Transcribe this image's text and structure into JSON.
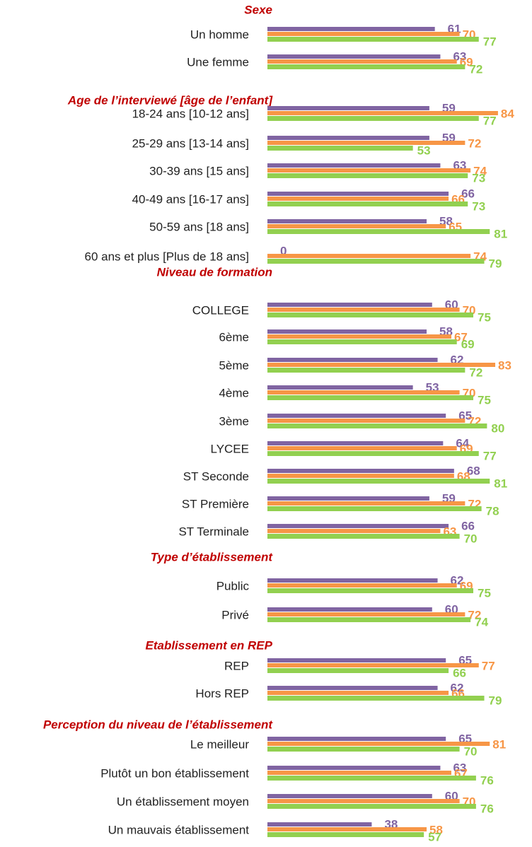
{
  "chart_data": {
    "type": "bar",
    "orientation": "horizontal",
    "colors": [
      "#8064a2",
      "#f79646",
      "#92d050"
    ],
    "xlim": [
      0,
      100
    ],
    "groups": [
      {
        "title": "Sexe",
        "rows": [
          {
            "label": "Un homme",
            "values": [
              61,
              70,
              77
            ]
          },
          {
            "label": "Une femme",
            "values": [
              63,
              69,
              72
            ]
          }
        ]
      },
      {
        "title": "Age de l’interviewé [âge de l’enfant]",
        "rows": [
          {
            "label": "18-24 ans [10-12 ans]",
            "values": [
              59,
              84,
              77
            ]
          },
          {
            "label": "25-29 ans [13-14 ans]",
            "values": [
              59,
              72,
              53
            ]
          },
          {
            "label": "30-39 ans [15 ans]",
            "values": [
              63,
              74,
              73
            ]
          },
          {
            "label": "40-49 ans [16-17 ans]",
            "values": [
              66,
              66,
              73
            ]
          },
          {
            "label": "50-59 ans [18 ans]",
            "values": [
              58,
              65,
              81
            ]
          },
          {
            "label": "60 ans et plus [Plus de 18 ans]",
            "values": [
              0,
              74,
              79
            ]
          }
        ]
      },
      {
        "title": "Niveau de formation",
        "rows": [
          {
            "label": "COLLEGE",
            "values": [
              60,
              70,
              75
            ]
          },
          {
            "label": "6ème",
            "values": [
              58,
              67,
              69
            ]
          },
          {
            "label": "5ème",
            "values": [
              62,
              83,
              72
            ]
          },
          {
            "label": "4ème",
            "values": [
              53,
              70,
              75
            ]
          },
          {
            "label": "3ème",
            "values": [
              65,
              72,
              80
            ]
          },
          {
            "label": "LYCEE",
            "values": [
              64,
              69,
              77
            ]
          },
          {
            "label": "ST Seconde",
            "values": [
              68,
              68,
              81
            ]
          },
          {
            "label": "ST Première",
            "values": [
              59,
              72,
              78
            ]
          },
          {
            "label": "ST Terminale",
            "values": [
              66,
              63,
              70
            ]
          }
        ]
      },
      {
        "title": "Type d’établissement",
        "rows": [
          {
            "label": "Public",
            "values": [
              62,
              69,
              75
            ]
          },
          {
            "label": "Privé",
            "values": [
              60,
              72,
              74
            ]
          }
        ]
      },
      {
        "title": "Etablissement en REP",
        "rows": [
          {
            "label": "REP",
            "values": [
              65,
              77,
              66
            ]
          },
          {
            "label": "Hors REP",
            "values": [
              62,
              66,
              79
            ]
          }
        ]
      },
      {
        "title": "Perception du niveau de l’établissement",
        "rows": [
          {
            "label": "Le meilleur",
            "values": [
              65,
              81,
              70
            ]
          },
          {
            "label": "Plutôt un bon établissement",
            "values": [
              63,
              67,
              76
            ]
          },
          {
            "label": "Un établissement moyen",
            "values": [
              60,
              70,
              76
            ]
          },
          {
            "label": "Un mauvais établissement",
            "values": [
              38,
              58,
              57
            ]
          }
        ]
      }
    ]
  }
}
